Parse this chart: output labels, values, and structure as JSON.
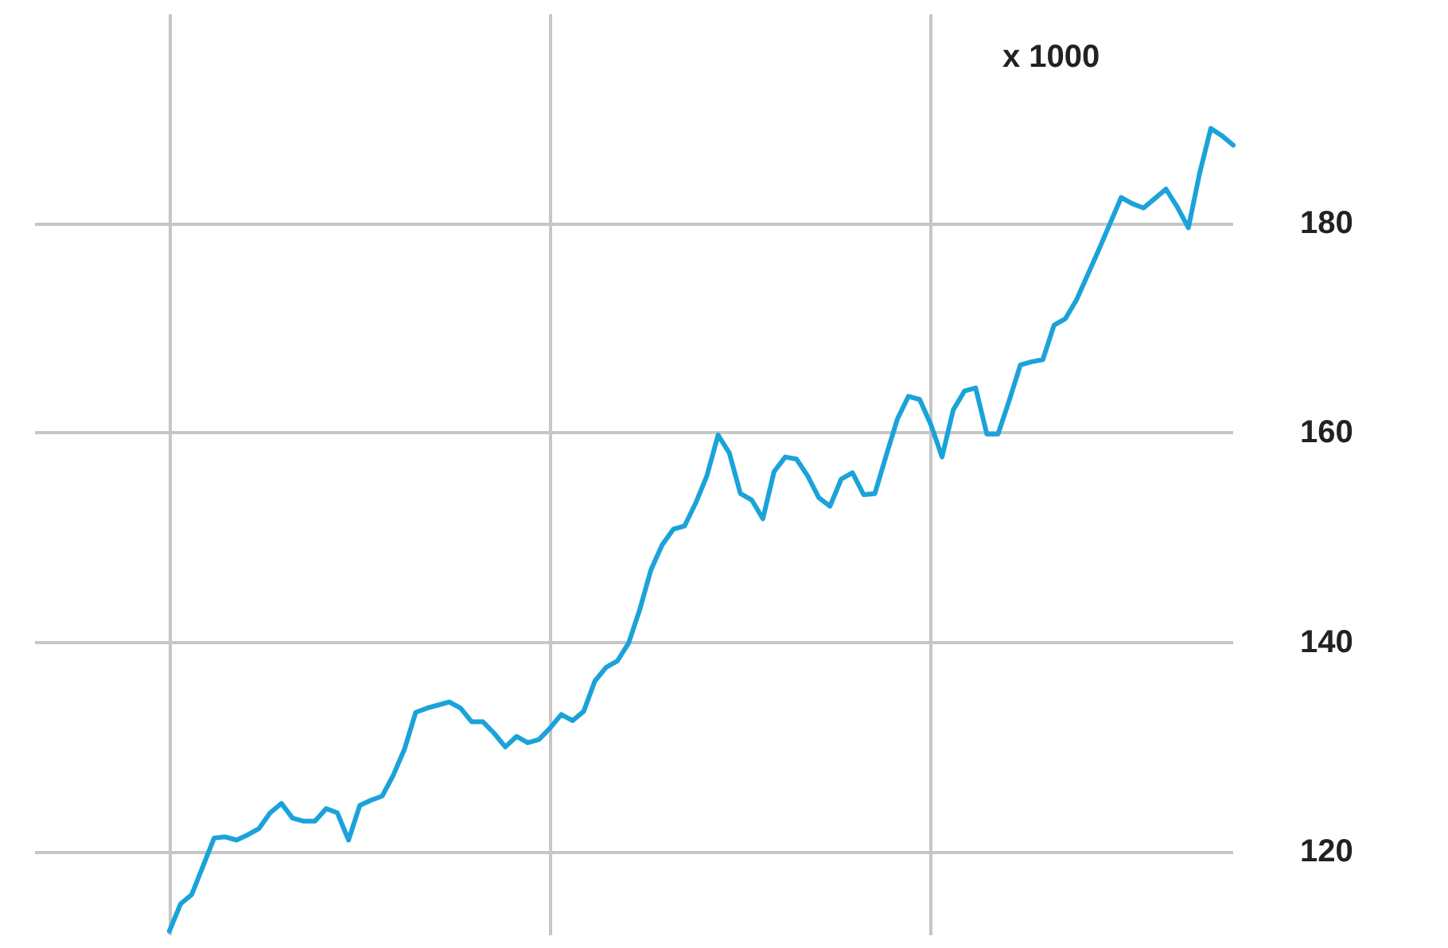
{
  "chart_data": {
    "type": "line",
    "ylabel": "x 1000",
    "categories": [
      null,
      null,
      null,
      null,
      null,
      null,
      null,
      null,
      null,
      null,
      null,
      null,
      null,
      null,
      null,
      null,
      null,
      null,
      null,
      null,
      null,
      null,
      null,
      null,
      null,
      null,
      null,
      null,
      null,
      null,
      null,
      null,
      null,
      null,
      null,
      null,
      null,
      null,
      null,
      null,
      null,
      null,
      null,
      null,
      null,
      null,
      null,
      null,
      null,
      null,
      null,
      null,
      null,
      null,
      null,
      null,
      null,
      null,
      null,
      null,
      null,
      null,
      null,
      null,
      null,
      null,
      null,
      null,
      null,
      null,
      null,
      null,
      null,
      null,
      null,
      null,
      null,
      null,
      null,
      null,
      null,
      null,
      null,
      null,
      null,
      null,
      null,
      null,
      null,
      null,
      null,
      null,
      null,
      null,
      null,
      null,
      null,
      null,
      null,
      null,
      null,
      null,
      null,
      null,
      null,
      null,
      null,
      null
    ],
    "series": [
      {
        "color": "#1ba3d9",
        "values": [
          null,
          null,
          null,
          null,
          null,
          null,
          null,
          null,
          null,
          null,
          null,
          null,
          112.4,
          115.0,
          115.9,
          118.6,
          121.3,
          121.4,
          121.1,
          121.6,
          122.2,
          123.7,
          124.6,
          123.2,
          122.9,
          122.9,
          124.1,
          123.7,
          121.1,
          124.4,
          124.9,
          125.3,
          127.3,
          129.8,
          133.3,
          133.7,
          134.0,
          134.3,
          133.7,
          132.4,
          132.4,
          131.3,
          130.0,
          131.0,
          130.4,
          130.7,
          131.8,
          133.1,
          132.5,
          133.4,
          136.3,
          137.6,
          138.2,
          139.9,
          143.1,
          146.9,
          149.3,
          150.8,
          151.1,
          153.3,
          155.9,
          159.8,
          158.1,
          154.2,
          153.6,
          151.8,
          156.3,
          157.7,
          157.5,
          155.9,
          153.8,
          153.0,
          155.6,
          156.2,
          154.1,
          154.2,
          157.8,
          161.3,
          163.5,
          163.2,
          160.8,
          157.7,
          162.2,
          164.0,
          164.3,
          159.9,
          159.9,
          163.1,
          166.5,
          166.8,
          167.0,
          170.3,
          170.9,
          172.7,
          175.1,
          177.5,
          180.0,
          182.5,
          181.9,
          181.5,
          182.4,
          183.3,
          181.6,
          179.6,
          184.8,
          189.1,
          188.4,
          187.5
        ]
      }
    ],
    "ylim": [
      112,
      200
    ],
    "yticks": [
      120,
      140,
      160,
      180
    ],
    "grid": true,
    "marker": "none",
    "line_style": "solid"
  }
}
